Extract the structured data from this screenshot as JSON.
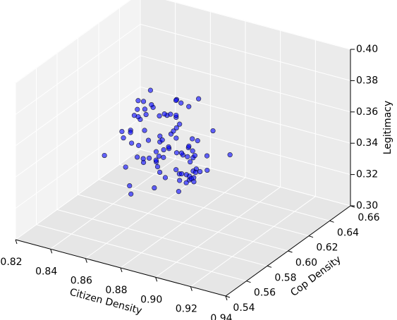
{
  "chart_data": {
    "type": "scatter3d",
    "xlabel": "Citizen Density",
    "ylabel": "Cop Density",
    "zlabel": "Legitimacy",
    "xlim": [
      0.82,
      0.94
    ],
    "ylim": [
      0.54,
      0.66
    ],
    "zlim": [
      0.3,
      0.4
    ],
    "xticks": [
      0.82,
      0.84,
      0.86,
      0.88,
      {
        "value": 0.9,
        "label": "0.90"
      },
      0.92,
      0.94
    ],
    "yticks": [
      0.54,
      0.56,
      0.58,
      {
        "value": 0.6,
        "label": "0.60"
      },
      0.62,
      0.64,
      0.66
    ],
    "zticks": [
      {
        "value": 0.3,
        "label": "0.30"
      },
      0.32,
      0.34,
      0.36,
      0.38,
      {
        "value": 0.4,
        "label": "0.40"
      }
    ],
    "grid": true,
    "color": "#0000ff",
    "x": [
      0.872,
      0.865,
      0.881,
      0.859,
      0.876,
      0.868,
      0.884,
      0.862,
      0.87,
      0.879,
      0.857,
      0.874,
      0.866,
      0.888,
      0.861,
      0.873,
      0.869,
      0.88,
      0.855,
      0.877,
      0.864,
      0.871,
      0.886,
      0.86,
      0.875,
      0.867,
      0.883,
      0.858,
      0.878,
      0.863,
      0.87,
      0.882,
      0.856,
      0.874,
      0.866,
      0.889,
      0.862,
      0.872,
      0.868,
      0.879,
      0.853,
      0.876,
      0.864,
      0.885,
      0.86,
      0.873,
      0.869,
      0.881,
      0.857,
      0.877,
      0.865,
      0.871,
      0.887,
      0.861,
      0.875,
      0.867,
      0.883,
      0.859,
      0.878,
      0.863,
      0.846,
      0.895,
      0.85,
      0.892,
      0.848,
      0.893,
      0.852,
      0.89,
      0.87,
      0.868,
      0.874,
      0.866,
      0.88,
      0.858,
      0.876,
      0.862,
      0.884,
      0.871,
      0.865,
      0.879,
      0.855,
      0.873,
      0.869,
      0.882,
      0.86,
      0.877,
      0.864,
      0.886,
      0.867,
      0.872
    ],
    "y": [
      0.6,
      0.592,
      0.608,
      0.585,
      0.612,
      0.598,
      0.59,
      0.615,
      0.603,
      0.595,
      0.61,
      0.587,
      0.605,
      0.597,
      0.62,
      0.593,
      0.607,
      0.583,
      0.601,
      0.614,
      0.589,
      0.606,
      0.596,
      0.611,
      0.584,
      0.602,
      0.618,
      0.594,
      0.609,
      0.586,
      0.599,
      0.613,
      0.591,
      0.604,
      0.617,
      0.588,
      0.6,
      0.61,
      0.582,
      0.606,
      0.595,
      0.616,
      0.59,
      0.603,
      0.608,
      0.586,
      0.612,
      0.597,
      0.58,
      0.605,
      0.619,
      0.593,
      0.601,
      0.588,
      0.614,
      0.596,
      0.609,
      0.584,
      0.602,
      0.622,
      0.6,
      0.598,
      0.575,
      0.625,
      0.61,
      0.585,
      0.592,
      0.612,
      0.57,
      0.63,
      0.604,
      0.596,
      0.615,
      0.587,
      0.6,
      0.608,
      0.59,
      0.611,
      0.594,
      0.605,
      0.599,
      0.618,
      0.583,
      0.607,
      0.597,
      0.613,
      0.589,
      0.602,
      0.62,
      0.581
    ],
    "z": [
      0.345,
      0.352,
      0.338,
      0.36,
      0.341,
      0.349,
      0.333,
      0.356,
      0.344,
      0.336,
      0.362,
      0.347,
      0.34,
      0.33,
      0.354,
      0.343,
      0.35,
      0.337,
      0.358,
      0.346,
      0.339,
      0.353,
      0.331,
      0.357,
      0.342,
      0.348,
      0.335,
      0.364,
      0.344,
      0.351,
      0.367,
      0.327,
      0.348,
      0.341,
      0.355,
      0.334,
      0.37,
      0.324,
      0.346,
      0.339,
      0.352,
      0.337,
      0.359,
      0.343,
      0.329,
      0.35,
      0.345,
      0.333,
      0.361,
      0.34,
      0.347,
      0.356,
      0.336,
      0.342,
      0.366,
      0.338,
      0.349,
      0.325,
      0.343,
      0.353,
      0.344,
      0.339,
      0.346,
      0.335,
      0.358,
      0.35,
      0.331,
      0.356,
      0.38,
      0.315,
      0.375,
      0.32,
      0.372,
      0.318,
      0.377,
      0.323,
      0.369,
      0.312,
      0.383,
      0.328,
      0.371,
      0.319,
      0.374,
      0.326,
      0.368,
      0.321,
      0.378,
      0.333,
      0.363,
      0.348
    ]
  }
}
